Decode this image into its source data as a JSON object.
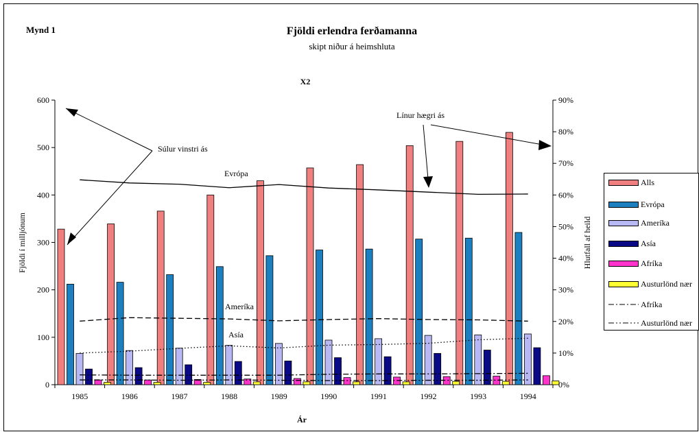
{
  "page": {
    "label": "Mynd 1"
  },
  "chart_data": {
    "type": "bar",
    "title": "Fjöldi erlendra ferðamanna",
    "subtitle": "skipt niður á heimshluta",
    "secondary_axis_label": "X2",
    "xlabel": "Ár",
    "ylabel": "Fjöldi í milljónum",
    "y2label": "Hlutfall af heild",
    "ylim": [
      0,
      600
    ],
    "y_ticks": [
      "0",
      "100",
      "200",
      "300",
      "400",
      "500",
      "600"
    ],
    "y2lim": [
      0,
      90
    ],
    "y2_ticks": [
      "0%",
      "10%",
      "20%",
      "30%",
      "40%",
      "50%",
      "60%",
      "70%",
      "80%",
      "90%"
    ],
    "categories": [
      "1985",
      "1986",
      "1987",
      "1988",
      "1989",
      "1990",
      "1991",
      "1992",
      "1993",
      "1994"
    ],
    "bar_series": [
      {
        "name": "Alls",
        "color": "#f07f7f",
        "values": [
          328,
          339,
          366,
          400,
          430,
          457,
          464,
          504,
          513,
          532
        ]
      },
      {
        "name": "Evrópa",
        "color": "#1b7fc0",
        "values": [
          212,
          216,
          232,
          249,
          272,
          284,
          286,
          307,
          309,
          321
        ]
      },
      {
        "name": "Ameríka",
        "color": "#b8b8f4",
        "values": [
          66,
          72,
          77,
          83,
          87,
          94,
          97,
          104,
          105,
          107
        ]
      },
      {
        "name": "Asía",
        "color": "#0a0a86",
        "values": [
          33,
          36,
          42,
          49,
          50,
          57,
          59,
          66,
          73,
          78
        ]
      },
      {
        "name": "Afríka",
        "color": "#ff33cc",
        "values": [
          10,
          10,
          11,
          12,
          13,
          15,
          16,
          17,
          18,
          19
        ]
      },
      {
        "name": "Austurlönd nær",
        "color": "#ffff33",
        "values": [
          5,
          5,
          5,
          6,
          6,
          6,
          6,
          7,
          7,
          8
        ]
      }
    ],
    "line_series": [
      {
        "name": "Evrópa",
        "style": "solid",
        "values": [
          64.8,
          63.8,
          63.4,
          62.3,
          63.3,
          62.2,
          61.6,
          60.9,
          60.2,
          60.3
        ]
      },
      {
        "name": "Ameríka",
        "style": "dashed",
        "values": [
          20.1,
          21.2,
          21.0,
          20.8,
          20.2,
          20.6,
          20.9,
          20.6,
          20.5,
          20.1
        ]
      },
      {
        "name": "Asía",
        "style": "dotted",
        "values": [
          10.0,
          10.6,
          11.5,
          12.3,
          11.6,
          12.5,
          12.7,
          13.1,
          14.2,
          14.7
        ]
      },
      {
        "name": "Afríka",
        "style": "dashdot",
        "values": [
          3.1,
          3.0,
          3.0,
          3.0,
          3.0,
          3.3,
          3.4,
          3.4,
          3.5,
          3.6
        ]
      },
      {
        "name": "Austurlönd nær",
        "style": "dashdotdot",
        "values": [
          1.5,
          1.5,
          1.4,
          1.5,
          1.4,
          1.3,
          1.3,
          1.4,
          1.4,
          1.5
        ]
      }
    ],
    "annotations": {
      "left_axis_note": "Súlur vinstri ás",
      "right_axis_note": "Línur hægri ás",
      "line_label_europe": "Evrópa",
      "line_label_america": "Ameríka",
      "line_label_asia": "Asía"
    },
    "legend": {
      "placement": "right",
      "entries": [
        "Alls",
        "Evrópa",
        "Ameríka",
        "Asía",
        "Afríka",
        "Austurlönd nær",
        "Afríka",
        "Austurlönd nær"
      ]
    }
  }
}
